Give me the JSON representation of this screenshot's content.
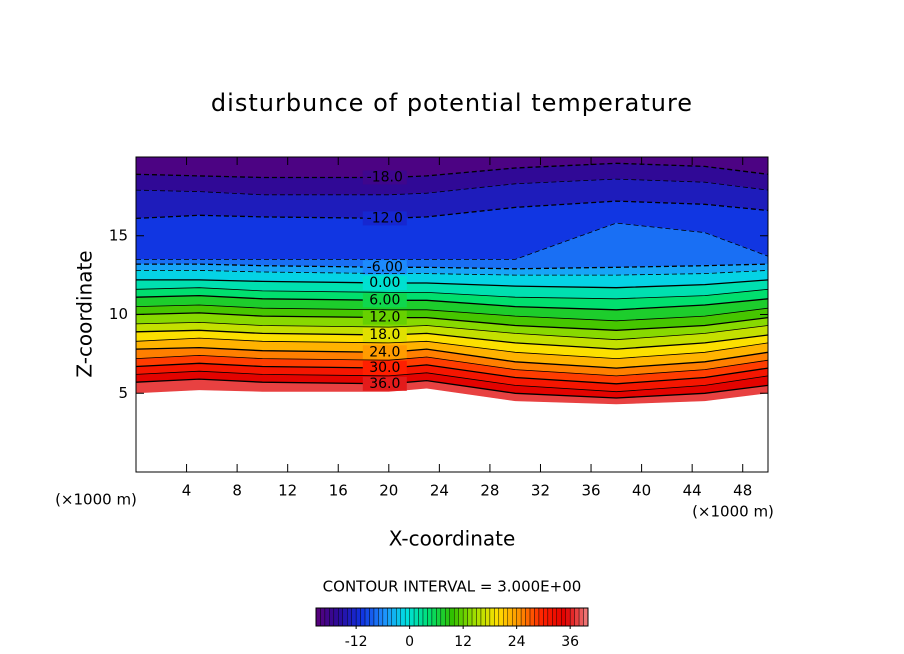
{
  "chart_data": {
    "type": "contour",
    "title": "disturbunce of potential temperature",
    "x_label": "X-coordinate",
    "y_label": "Z-coordinate",
    "x_unit": "(×1000 m)",
    "y_unit": "(×1000 m)",
    "contour_interval": "CONTOUR INTERVAL = 3.000E+00",
    "xlim": [
      0,
      50
    ],
    "ylim": [
      0,
      20
    ],
    "xticks": [
      4,
      8,
      12,
      16,
      20,
      24,
      28,
      32,
      36,
      40,
      44,
      48
    ],
    "yticks": [
      5,
      10,
      15
    ],
    "contour_x": [
      0,
      5,
      10,
      20,
      23,
      30,
      38,
      45,
      50
    ],
    "contours": [
      {
        "level": -18,
        "label": "-18.0",
        "y": [
          18.9,
          18.8,
          18.7,
          18.7,
          18.8,
          19.3,
          19.6,
          19.4,
          18.9
        ]
      },
      {
        "level": -15,
        "y": [
          17.9,
          17.8,
          17.6,
          17.6,
          17.7,
          18.3,
          18.6,
          18.4,
          17.9
        ]
      },
      {
        "level": -12,
        "label": "-12.0",
        "y": [
          16.1,
          16.3,
          16.2,
          16.1,
          16.2,
          16.8,
          17.2,
          17.0,
          16.6
        ]
      },
      {
        "level": -9,
        "y": [
          13.5,
          13.5,
          13.5,
          13.5,
          13.5,
          13.5,
          15.8,
          15.2,
          13.7
        ]
      },
      {
        "level": -6,
        "label": "-6.00",
        "y": [
          13.2,
          13.2,
          13.1,
          13.0,
          13.0,
          12.9,
          13.0,
          13.1,
          13.2
        ]
      },
      {
        "level": -3,
        "y": [
          12.8,
          12.8,
          12.7,
          12.6,
          12.6,
          12.5,
          12.5,
          12.6,
          12.8
        ]
      },
      {
        "level": 0,
        "label": "0.00",
        "y": [
          12.2,
          12.2,
          12.1,
          12.0,
          12.0,
          11.8,
          11.7,
          11.9,
          12.2
        ]
      },
      {
        "level": 3,
        "y": [
          11.6,
          11.7,
          11.5,
          11.4,
          11.4,
          11.1,
          11.0,
          11.2,
          11.6
        ]
      },
      {
        "level": 6,
        "label": "6.00",
        "y": [
          11.1,
          11.2,
          11.0,
          10.9,
          10.9,
          10.5,
          10.3,
          10.6,
          11.0
        ]
      },
      {
        "level": 9,
        "y": [
          10.5,
          10.6,
          10.4,
          10.3,
          10.3,
          9.9,
          9.6,
          9.9,
          10.4
        ]
      },
      {
        "level": 12,
        "label": "12.0",
        "y": [
          10.0,
          10.1,
          9.9,
          9.8,
          9.8,
          9.3,
          9.0,
          9.3,
          9.8
        ]
      },
      {
        "level": 15,
        "y": [
          9.4,
          9.5,
          9.3,
          9.2,
          9.3,
          8.8,
          8.4,
          8.8,
          9.3
        ]
      },
      {
        "level": 18,
        "label": "18.0",
        "y": [
          8.9,
          9.0,
          8.8,
          8.7,
          8.8,
          8.2,
          7.8,
          8.2,
          8.7
        ]
      },
      {
        "level": 21,
        "y": [
          8.3,
          8.5,
          8.3,
          8.2,
          8.3,
          7.6,
          7.2,
          7.6,
          8.2
        ]
      },
      {
        "level": 24,
        "label": "24.0",
        "y": [
          7.8,
          7.9,
          7.7,
          7.6,
          7.8,
          7.0,
          6.6,
          7.0,
          7.6
        ]
      },
      {
        "level": 27,
        "y": [
          7.2,
          7.4,
          7.2,
          7.1,
          7.3,
          6.5,
          6.1,
          6.5,
          7.1
        ]
      },
      {
        "level": 30,
        "label": "30.0",
        "y": [
          6.7,
          6.9,
          6.7,
          6.6,
          6.8,
          6.0,
          5.6,
          6.0,
          6.6
        ]
      },
      {
        "level": 33,
        "y": [
          6.2,
          6.4,
          6.2,
          6.1,
          6.3,
          5.5,
          5.1,
          5.5,
          6.1
        ]
      },
      {
        "level": 36,
        "label": "36.0",
        "y": [
          5.7,
          5.9,
          5.7,
          5.6,
          5.8,
          5.0,
          4.7,
          5.0,
          5.5
        ]
      }
    ],
    "ground": [
      5.0,
      5.2,
      5.1,
      5.1,
      5.3,
      4.5,
      4.3,
      4.5,
      5.0
    ],
    "colormap": [
      "#5a007a",
      "#2a0a9a",
      "#1030e0",
      "#1e90ff",
      "#00e0e0",
      "#00e070",
      "#30c000",
      "#a0e000",
      "#ffe000",
      "#ff9000",
      "#ff2000",
      "#e00000",
      "#f08080"
    ],
    "colorbar_lim": [
      -21,
      40
    ],
    "colorbar_ticks": [
      -12,
      0,
      12,
      24,
      36
    ]
  }
}
